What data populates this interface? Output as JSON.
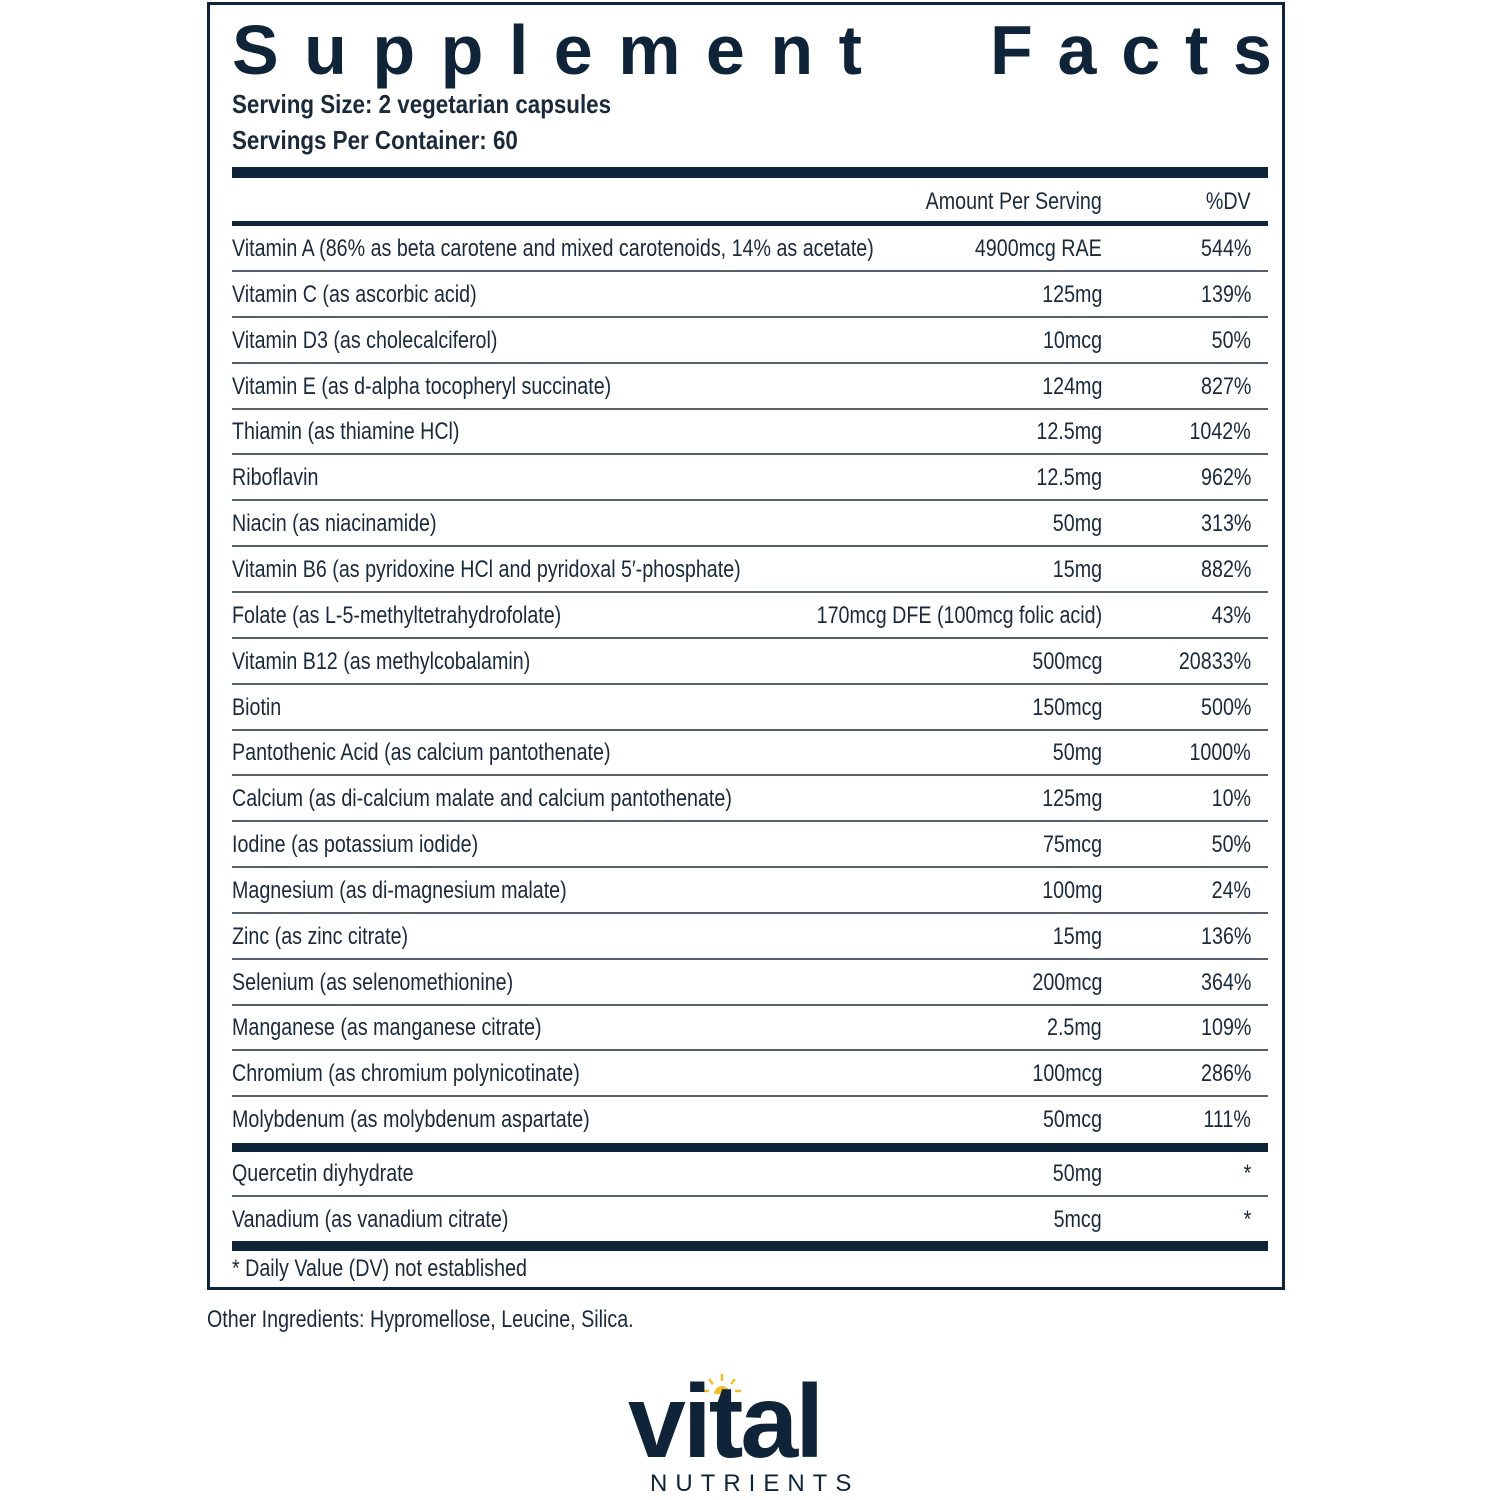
{
  "label": {
    "title_words": [
      [
        "S",
        "u",
        "p",
        "p",
        "l",
        "e",
        "m",
        "e",
        "n",
        "t"
      ],
      [
        "F",
        "a",
        "c",
        "t",
        "s"
      ]
    ],
    "title": "Supplement Facts",
    "serving_size": "Serving Size: 2 vegetarian capsules",
    "servings_per_container": "Servings Per Container: 60",
    "header": {
      "amount": "Amount Per Serving",
      "dv": "%DV"
    },
    "nutrients": [
      {
        "name": "Vitamin A (86% as beta carotene and mixed carotenoids, 14% as acetate)",
        "amount": "4900mcg RAE",
        "dv": "544%"
      },
      {
        "name": "Vitamin C (as ascorbic acid)",
        "amount": "125mg",
        "dv": "139%"
      },
      {
        "name": "Vitamin D3 (as cholecalciferol)",
        "amount": "10mcg",
        "dv": "50%"
      },
      {
        "name": "Vitamin E (as d-alpha tocopheryl succinate)",
        "amount": "124mg",
        "dv": "827%"
      },
      {
        "name": "Thiamin (as thiamine HCl)",
        "amount": "12.5mg",
        "dv": "1042%"
      },
      {
        "name": "Riboflavin",
        "amount": "12.5mg",
        "dv": "962%"
      },
      {
        "name": "Niacin (as niacinamide)",
        "amount": "50mg",
        "dv": "313%"
      },
      {
        "name": "Vitamin B6 (as pyridoxine HCl and pyridoxal 5′-phosphate)",
        "amount": "15mg",
        "dv": "882%"
      },
      {
        "name": "Folate (as L-5-methyltetrahydrofolate)",
        "amount": "170mcg DFE (100mcg folic acid)",
        "dv": "43%"
      },
      {
        "name": "Vitamin B12 (as methylcobalamin)",
        "amount": "500mcg",
        "dv": "20833%"
      },
      {
        "name": "Biotin",
        "amount": "150mcg",
        "dv": "500%"
      },
      {
        "name": "Pantothenic Acid (as calcium pantothenate)",
        "amount": "50mg",
        "dv": "1000%"
      },
      {
        "name": "Calcium (as di-calcium malate and calcium pantothenate)",
        "amount": "125mg",
        "dv": "10%"
      },
      {
        "name": "Iodine (as potassium iodide)",
        "amount": "75mcg",
        "dv": "50%"
      },
      {
        "name": "Magnesium (as di-magnesium malate)",
        "amount": "100mg",
        "dv": "24%"
      },
      {
        "name": "Zinc (as zinc citrate)",
        "amount": "15mg",
        "dv": "136%"
      },
      {
        "name": "Selenium (as selenomethionine)",
        "amount": "200mcg",
        "dv": "364%"
      },
      {
        "name": "Manganese (as manganese citrate)",
        "amount": "2.5mg",
        "dv": "109%"
      },
      {
        "name": "Chromium (as chromium polynicotinate)",
        "amount": "100mcg",
        "dv": "286%"
      },
      {
        "name": "Molybdenum (as molybdenum aspartate)",
        "amount": "50mcg",
        "dv": "111%"
      }
    ],
    "other_actives": [
      {
        "name": "Quercetin diyhydrate",
        "amount": "50mg",
        "dv": "*"
      },
      {
        "name": "Vanadium (as vanadium citrate)",
        "amount": "5mcg",
        "dv": "*"
      }
    ],
    "footnote": "* Daily Value (DV) not established"
  },
  "other_ingredients": "Other Ingredients: Hypromellose, Leucine, Silica.",
  "brand": {
    "name": "vital",
    "subtitle": "NUTRIENTS",
    "icon": "sun-icon",
    "colors": {
      "navy": "#0f2438",
      "sun": "#f2bf2a"
    }
  }
}
